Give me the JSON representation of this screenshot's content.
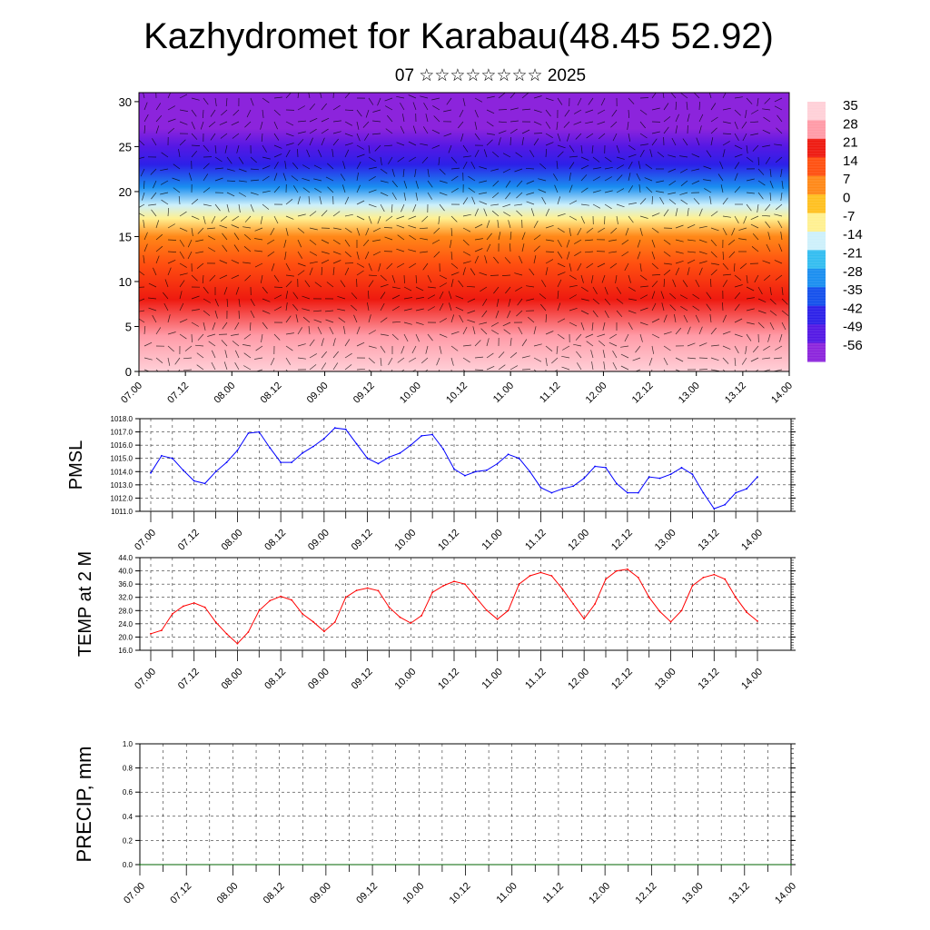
{
  "header": {
    "title": "Kazhydromet for Karabau(48.45 52.92)",
    "subtitle": "07 ☆☆☆☆☆☆☆☆ 2025"
  },
  "chart_data": [
    {
      "type": "heatmap",
      "title": "",
      "xlabel": "",
      "ylabel": "",
      "x_ticks": [
        "07.00",
        "07.12",
        "08.00",
        "08.12",
        "09.00",
        "09.12",
        "10.00",
        "10.12",
        "11.00",
        "11.12",
        "12.00",
        "12.12",
        "13.00",
        "13.12",
        "14.00"
      ],
      "y_ticks": [
        0,
        5,
        10,
        15,
        20,
        25,
        30
      ],
      "ylim": [
        0,
        31
      ],
      "colorbar_labels": [
        "35",
        "28",
        "21",
        "14",
        "7",
        "0",
        "-7",
        "-14",
        "-21",
        "-28",
        "-35",
        "-42",
        "-49",
        "-56"
      ],
      "colorbar_colors": [
        "#ffd0d8",
        "#ff9aa6",
        "#ee1a10",
        "#ff5010",
        "#ff8818",
        "#ffc020",
        "#fff090",
        "#cdf0fb",
        "#33bdf0",
        "#1a8ef0",
        "#1450ec",
        "#2c20e8",
        "#5418e4",
        "#8c24dc"
      ],
      "temp_profile": [
        [
          0,
          35
        ],
        [
          4,
          28
        ],
        [
          8,
          20
        ],
        [
          12,
          12
        ],
        [
          15,
          4
        ],
        [
          17,
          -4
        ],
        [
          18.5,
          -14
        ],
        [
          20.5,
          -28
        ],
        [
          23,
          -42
        ],
        [
          25,
          -52
        ],
        [
          27,
          -56
        ],
        [
          31,
          -56
        ]
      ],
      "overlay": "wind vectors"
    },
    {
      "type": "line",
      "ylabel": "PMSL",
      "ylim": [
        1011.0,
        1018.0
      ],
      "y_ticks": [
        "1011.0",
        "1012.0",
        "1013.0",
        "1014.0",
        "1015.0",
        "1016.0",
        "1017.0",
        "1018.0"
      ],
      "x_ticks": [
        "07.00",
        "07.12",
        "08.00",
        "08.12",
        "09.00",
        "09.12",
        "10.00",
        "10.12",
        "11.00",
        "11.12",
        "12.00",
        "12.12",
        "13.00",
        "13.12",
        "14.00"
      ],
      "x": [
        0,
        3,
        6,
        9,
        12,
        15,
        18,
        21,
        24,
        27,
        30,
        33,
        36,
        39,
        42,
        45,
        48,
        51,
        54,
        57,
        60,
        63,
        66,
        69,
        72,
        75,
        78,
        81,
        84,
        87,
        90,
        93,
        96,
        99,
        102,
        105,
        108,
        111,
        114,
        117,
        120,
        123,
        126,
        129,
        132,
        135,
        138,
        141,
        144,
        147,
        150,
        153,
        156,
        159,
        162,
        165,
        168
      ],
      "series": [
        {
          "color": "#0000ff",
          "values": [
            1013.9,
            1015.2,
            1015.0,
            1014.1,
            1013.3,
            1013.1,
            1014.0,
            1014.7,
            1015.6,
            1016.9,
            1017.0,
            1015.8,
            1014.7,
            1014.7,
            1015.4,
            1015.9,
            1016.5,
            1017.3,
            1017.2,
            1016.1,
            1015.0,
            1014.6,
            1015.1,
            1015.4,
            1016.0,
            1016.7,
            1016.8,
            1015.7,
            1014.2,
            1013.7,
            1014.0,
            1014.1,
            1014.6,
            1015.3,
            1015.0,
            1014.0,
            1012.8,
            1012.4,
            1012.7,
            1012.9,
            1013.5,
            1014.4,
            1014.3,
            1013.1,
            1012.4,
            1012.4,
            1013.6,
            1013.5,
            1013.8,
            1014.3,
            1013.8,
            1012.4,
            1011.2,
            1011.5,
            1012.4,
            1012.7,
            1013.6
          ]
        }
      ]
    },
    {
      "type": "line",
      "ylabel": "TEMP at 2 M",
      "ylim": [
        16.0,
        44.0
      ],
      "y_ticks": [
        "16.0",
        "20.0",
        "24.0",
        "28.0",
        "32.0",
        "36.0",
        "40.0",
        "44.0"
      ],
      "x_ticks": [
        "07.00",
        "07.12",
        "08.00",
        "08.12",
        "09.00",
        "09.12",
        "10.00",
        "10.12",
        "11.00",
        "11.12",
        "12.00",
        "12.12",
        "13.00",
        "13.12",
        "14.00"
      ],
      "x": [
        0,
        3,
        6,
        9,
        12,
        15,
        18,
        21,
        24,
        27,
        30,
        33,
        36,
        39,
        42,
        45,
        48,
        51,
        54,
        57,
        60,
        63,
        66,
        69,
        72,
        75,
        78,
        81,
        84,
        87,
        90,
        93,
        96,
        99,
        102,
        105,
        108,
        111,
        114,
        117,
        120,
        123,
        126,
        129,
        132,
        135,
        138,
        141,
        144,
        147,
        150,
        153,
        156,
        159,
        162,
        165,
        168
      ],
      "series": [
        {
          "color": "#ff0000",
          "values": [
            21.0,
            22.0,
            27.0,
            29.3,
            30.3,
            29.0,
            24.5,
            21.0,
            18.0,
            21.5,
            28.0,
            31.0,
            32.3,
            31.2,
            27.0,
            24.6,
            21.7,
            24.5,
            32.0,
            34.1,
            34.8,
            34.0,
            29.0,
            26.0,
            24.2,
            26.5,
            33.5,
            35.5,
            36.8,
            36.0,
            32.0,
            28.1,
            25.4,
            28.0,
            36.0,
            38.5,
            39.5,
            38.5,
            34.5,
            30.0,
            25.5,
            30.0,
            37.5,
            40.0,
            40.5,
            38.0,
            32.0,
            27.7,
            24.6,
            28.0,
            35.5,
            38.0,
            38.9,
            37.5,
            32.0,
            27.5,
            24.8
          ]
        }
      ]
    },
    {
      "type": "line",
      "ylabel": "PRECIP, mm",
      "ylim": [
        0.0,
        1.0
      ],
      "y_ticks": [
        "0.0",
        "0.2",
        "0.4",
        "0.6",
        "0.8",
        "1.0"
      ],
      "x_ticks": [
        "07.00",
        "07.12",
        "08.00",
        "08.12",
        "09.00",
        "09.12",
        "10.00",
        "10.12",
        "11.00",
        "11.12",
        "12.00",
        "12.12",
        "13.00",
        "13.12",
        "14.00"
      ],
      "x": [
        0,
        168
      ],
      "series": [
        {
          "color": "#006600",
          "values": [
            0.0,
            0.0
          ]
        }
      ]
    }
  ]
}
